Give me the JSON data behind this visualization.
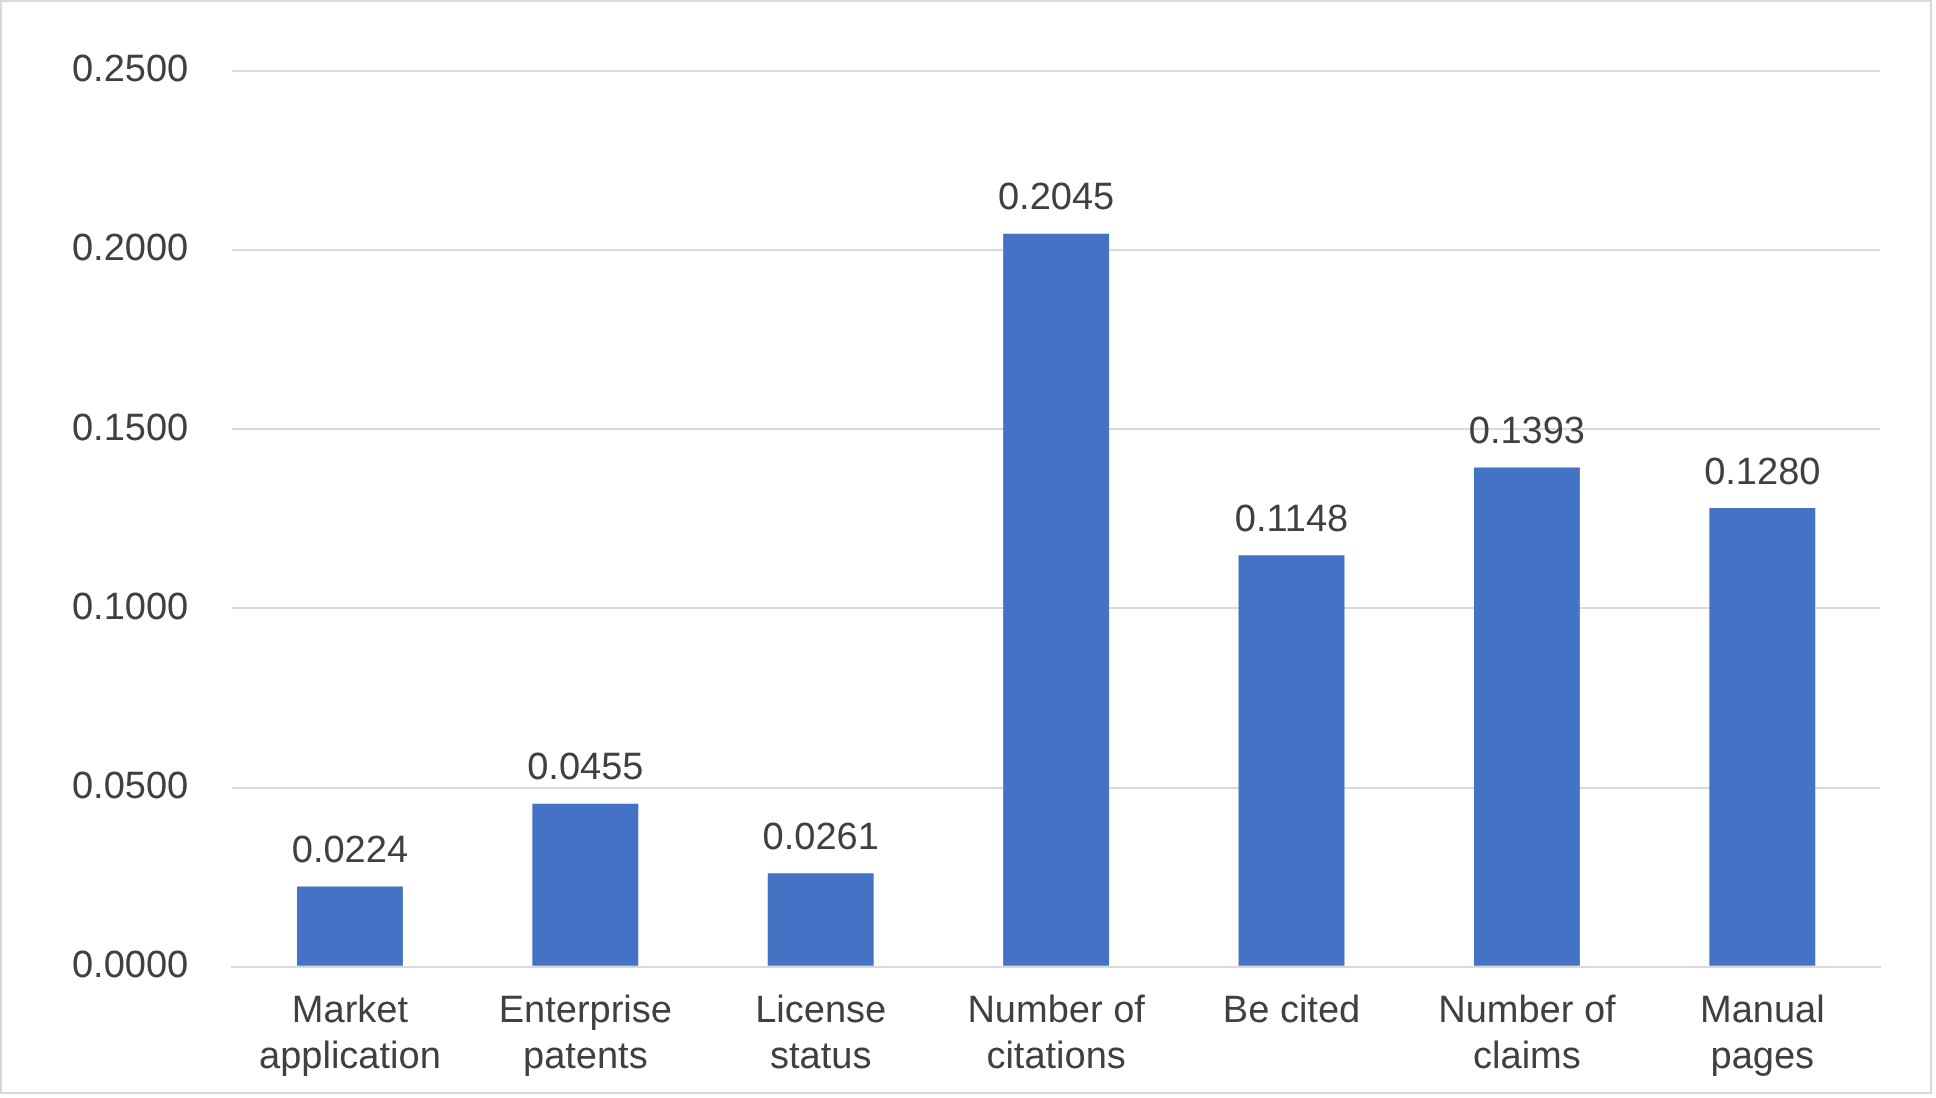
{
  "chart_data": {
    "type": "bar",
    "categories": [
      "Market application",
      "Enterprise patents",
      "License status",
      "Number of citations",
      "Be cited",
      "Number of claims",
      "Manual pages"
    ],
    "values": [
      0.0224,
      0.0455,
      0.0261,
      0.2045,
      0.1148,
      0.1393,
      0.128
    ],
    "value_labels": [
      "0.0224",
      "0.0455",
      "0.0261",
      "0.2045",
      "0.1148",
      "0.1393",
      "0.1280"
    ],
    "color": "#4472c4",
    "ylim": [
      0,
      0.25
    ],
    "yticks": [
      {
        "value": 0,
        "label": "0.0000"
      },
      {
        "value": 0.05,
        "label": "0.0500"
      },
      {
        "value": 0.1,
        "label": "0.1000"
      },
      {
        "value": 0.15,
        "label": "0.1500"
      },
      {
        "value": 0.2,
        "label": "0.2000"
      },
      {
        "value": 0.25,
        "label": "0.2500"
      }
    ],
    "grid": "y",
    "legend": false
  }
}
